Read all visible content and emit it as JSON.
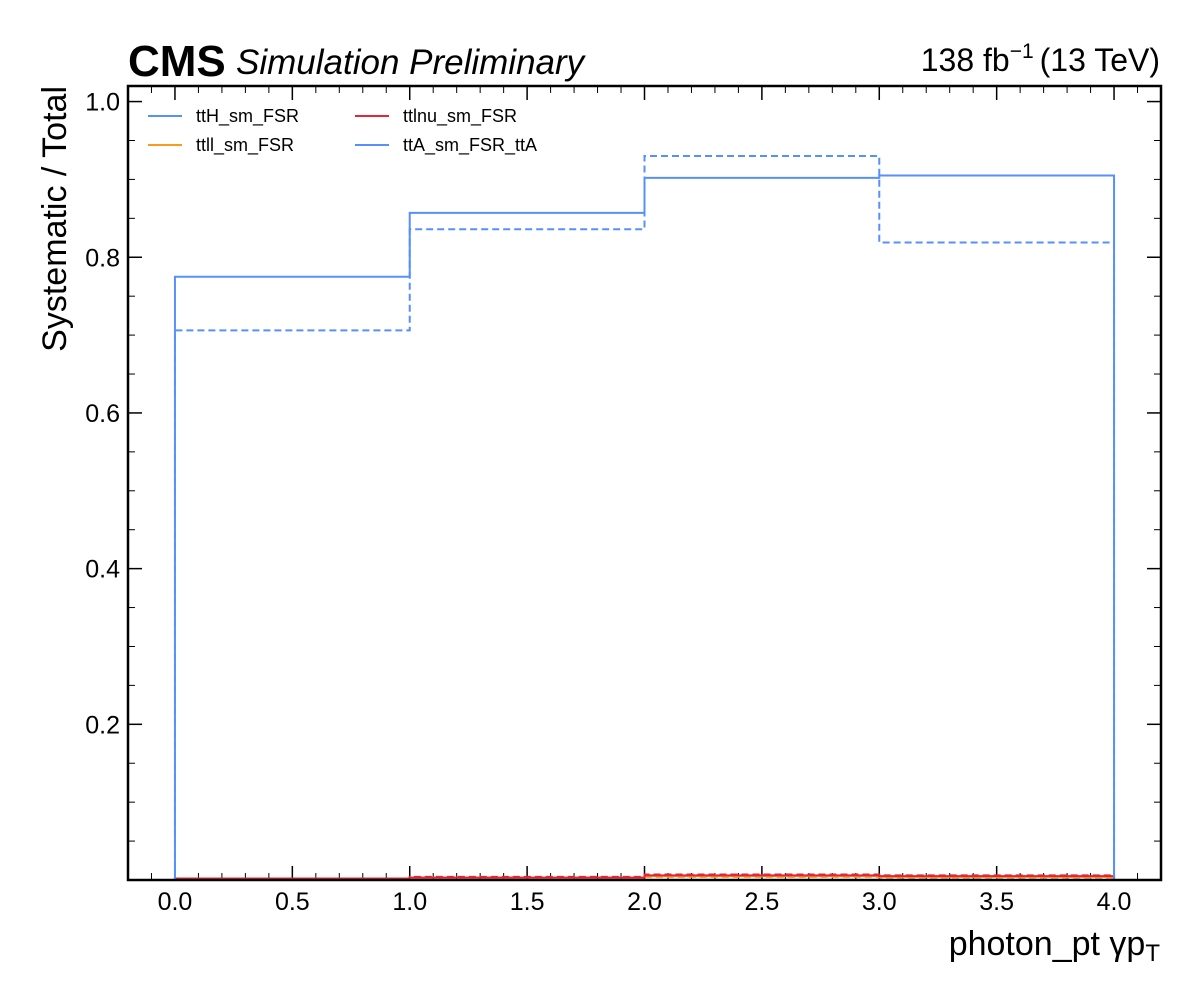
{
  "header": {
    "experiment": "CMS",
    "status": "Simulation Preliminary",
    "lumi_prefix": "138 fb",
    "lumi_exp": "−1",
    "lumi_suffix": "(13 TeV)"
  },
  "chart_data": {
    "type": "line",
    "title": "",
    "xlabel": "photon_pt   γp",
    "xlabel_sub": "T",
    "ylabel": "Systematic / Total",
    "xlim": [
      -0.2,
      4.2
    ],
    "ylim": [
      0.0,
      1.02
    ],
    "x_ticks": [
      "0.0",
      "0.5",
      "1.0",
      "1.5",
      "2.0",
      "2.5",
      "3.0",
      "3.5",
      "4.0"
    ],
    "y_ticks": [
      "0.2",
      "0.4",
      "0.6",
      "0.8",
      "1.0"
    ],
    "bin_edges": [
      0,
      1,
      2,
      3,
      4
    ],
    "legend_position": "top-left",
    "series": [
      {
        "name": "ttH_sm_FSR",
        "color": "#5790fc",
        "style": "solid",
        "values": [
          0.0,
          0.0,
          0.0,
          0.0
        ]
      },
      {
        "name": "ttH_sm_FSR",
        "color": "#5790fc",
        "style": "dashed",
        "values": [
          0.0,
          0.0,
          0.0,
          0.0
        ]
      },
      {
        "name": "ttll_sm_FSR",
        "color": "#f89c20",
        "style": "solid",
        "values": [
          0.002,
          0.003,
          0.005,
          0.004
        ]
      },
      {
        "name": "ttll_sm_FSR",
        "color": "#f89c20",
        "style": "dashed",
        "values": [
          0.002,
          0.003,
          0.004,
          0.003
        ]
      },
      {
        "name": "ttlnu_sm_FSR",
        "color": "#e42536",
        "style": "solid",
        "values": [
          0.002,
          0.003,
          0.006,
          0.005
        ]
      },
      {
        "name": "ttlnu_sm_FSR",
        "color": "#e42536",
        "style": "dashed",
        "values": [
          0.002,
          0.004,
          0.007,
          0.006
        ]
      },
      {
        "name": "ttA_sm_FSR_ttA",
        "color": "#5790fc",
        "style": "solid",
        "values": [
          0.775,
          0.857,
          0.902,
          0.905
        ]
      },
      {
        "name": "ttA_sm_FSR_ttA",
        "color": "#5790fc",
        "style": "dashed",
        "values": [
          0.706,
          0.836,
          0.93,
          0.819
        ]
      }
    ],
    "legend": [
      {
        "label": "ttH_sm_FSR",
        "color": "#5790fc"
      },
      {
        "label": "ttll_sm_FSR",
        "color": "#f89c20"
      },
      {
        "label": "ttlnu_sm_FSR",
        "color": "#e42536"
      },
      {
        "label": "ttA_sm_FSR_ttA",
        "color": "#5790fc"
      }
    ]
  }
}
